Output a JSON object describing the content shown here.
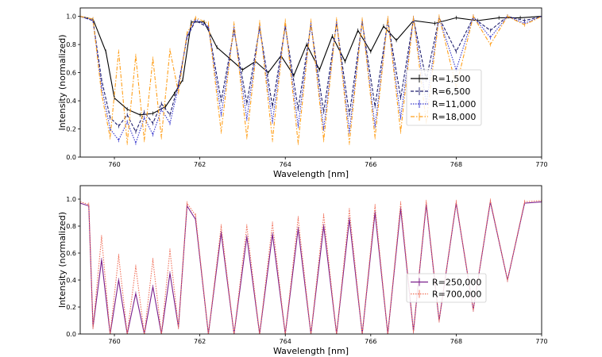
{
  "chart_data": [
    {
      "type": "line",
      "xlabel": "Wavelength [nm]",
      "ylabel": "Intensity (normalized)",
      "xlim": [
        759.2,
        770
      ],
      "ylim": [
        0,
        1.06
      ],
      "xticks": [
        "760",
        "762",
        "764",
        "766",
        "768",
        "770"
      ],
      "yticks": [
        "0.0",
        "0.2",
        "0.4",
        "0.6",
        "0.8",
        "1.0"
      ],
      "legend_position": "center-right",
      "series": [
        {
          "name": "R=1,500",
          "color": "#000000",
          "style": "solid",
          "marker": "errorbar",
          "x": [
            759.2,
            759.5,
            759.8,
            760.0,
            760.3,
            760.6,
            760.9,
            761.2,
            761.4,
            761.6,
            761.8,
            762.1,
            762.4,
            762.7,
            763.0,
            763.3,
            763.6,
            763.9,
            764.2,
            764.5,
            764.8,
            765.1,
            765.4,
            765.7,
            766.0,
            766.3,
            766.6,
            767.0,
            767.5,
            768.0,
            768.5,
            769.0,
            769.5,
            770.0
          ],
          "y": [
            1.0,
            0.98,
            0.75,
            0.42,
            0.34,
            0.3,
            0.31,
            0.36,
            0.45,
            0.55,
            0.96,
            0.96,
            0.78,
            0.7,
            0.62,
            0.68,
            0.6,
            0.72,
            0.58,
            0.8,
            0.62,
            0.86,
            0.68,
            0.9,
            0.75,
            0.93,
            0.83,
            0.97,
            0.95,
            0.99,
            0.97,
            0.99,
            0.99,
            1.0
          ]
        },
        {
          "name": "R=6,500",
          "color": "#1f1f6e",
          "style": "dashed",
          "marker": "errorbar",
          "x": [
            759.2,
            759.5,
            759.7,
            759.9,
            760.1,
            760.3,
            760.5,
            760.7,
            760.9,
            761.1,
            761.3,
            761.5,
            761.7,
            761.9,
            762.2,
            762.5,
            762.8,
            763.1,
            763.4,
            763.7,
            764.0,
            764.3,
            764.6,
            764.9,
            765.2,
            765.5,
            765.8,
            766.1,
            766.4,
            766.7,
            767.0,
            767.3,
            767.6,
            768.0,
            768.4,
            768.8,
            769.2,
            769.6,
            770.0
          ],
          "y": [
            1.0,
            0.97,
            0.55,
            0.28,
            0.22,
            0.3,
            0.18,
            0.32,
            0.24,
            0.38,
            0.3,
            0.52,
            0.85,
            0.97,
            0.92,
            0.4,
            0.9,
            0.38,
            0.92,
            0.36,
            0.93,
            0.34,
            0.94,
            0.32,
            0.95,
            0.3,
            0.96,
            0.36,
            0.97,
            0.42,
            0.98,
            0.55,
            0.99,
            0.75,
            0.99,
            0.9,
            1.0,
            0.97,
            1.0
          ]
        },
        {
          "name": "R=11,000",
          "color": "#3333cc",
          "style": "dotted",
          "marker": "errorbar",
          "x": [
            759.2,
            759.5,
            759.7,
            759.9,
            760.1,
            760.3,
            760.5,
            760.7,
            760.9,
            761.1,
            761.3,
            761.5,
            761.7,
            761.9,
            762.2,
            762.5,
            762.8,
            763.1,
            763.4,
            763.7,
            764.0,
            764.3,
            764.6,
            764.9,
            765.2,
            765.5,
            765.8,
            766.1,
            766.4,
            766.7,
            767.0,
            767.3,
            767.6,
            768.0,
            768.4,
            768.8,
            769.2,
            769.6,
            770.0
          ],
          "y": [
            1.0,
            0.97,
            0.5,
            0.2,
            0.12,
            0.25,
            0.1,
            0.28,
            0.16,
            0.34,
            0.24,
            0.5,
            0.86,
            0.98,
            0.93,
            0.3,
            0.92,
            0.27,
            0.93,
            0.25,
            0.94,
            0.22,
            0.95,
            0.2,
            0.96,
            0.18,
            0.97,
            0.22,
            0.98,
            0.28,
            0.99,
            0.38,
            0.99,
            0.62,
            1.0,
            0.85,
            1.0,
            0.95,
            1.0
          ]
        },
        {
          "name": "R=18,000",
          "color": "#ff9f1a",
          "style": "dashdot",
          "marker": "errorbar",
          "x": [
            759.2,
            759.5,
            759.7,
            759.9,
            760.1,
            760.3,
            760.5,
            760.7,
            760.9,
            761.1,
            761.3,
            761.5,
            761.7,
            761.9,
            762.2,
            762.5,
            762.8,
            763.1,
            763.4,
            763.7,
            764.0,
            764.3,
            764.6,
            764.9,
            765.2,
            765.5,
            765.8,
            766.1,
            766.4,
            766.7,
            767.0,
            767.3,
            767.6,
            768.0,
            768.4,
            768.8,
            769.2,
            769.6,
            770.0
          ],
          "y": [
            1.0,
            0.98,
            0.45,
            0.14,
            0.75,
            0.1,
            0.72,
            0.12,
            0.7,
            0.14,
            0.76,
            0.46,
            0.88,
            0.99,
            0.95,
            0.18,
            0.95,
            0.14,
            0.96,
            0.12,
            0.97,
            0.1,
            0.97,
            0.12,
            0.98,
            0.1,
            0.98,
            0.14,
            0.99,
            0.18,
            0.99,
            0.25,
            1.0,
            0.5,
            1.0,
            0.8,
            1.0,
            0.94,
            1.0
          ]
        }
      ]
    },
    {
      "type": "line",
      "xlabel": "Wavelength [nm]",
      "ylabel": "Intensity (normalized)",
      "xlim": [
        759.2,
        770
      ],
      "ylim": [
        0,
        1.1
      ],
      "xticks": [
        "760",
        "762",
        "764",
        "766",
        "768",
        "770"
      ],
      "yticks": [
        "0.0",
        "0.2",
        "0.4",
        "0.6",
        "0.8",
        "1.0"
      ],
      "legend_position": "center-right",
      "series": [
        {
          "name": "R=250,000",
          "color": "#7a1f8c",
          "style": "solid",
          "marker": "errorbar",
          "x": [
            759.2,
            759.4,
            759.5,
            759.7,
            759.9,
            760.1,
            760.3,
            760.5,
            760.7,
            760.9,
            761.1,
            761.3,
            761.5,
            761.7,
            761.9,
            762.2,
            762.5,
            762.8,
            763.1,
            763.4,
            763.7,
            764.0,
            764.3,
            764.6,
            764.9,
            765.2,
            765.5,
            765.8,
            766.1,
            766.4,
            766.7,
            767.0,
            767.3,
            767.6,
            768.0,
            768.4,
            768.8,
            769.2,
            769.6,
            770.0
          ],
          "y": [
            0.97,
            0.95,
            0.05,
            0.55,
            0.0,
            0.4,
            0.0,
            0.3,
            0.0,
            0.35,
            0.0,
            0.45,
            0.05,
            0.95,
            0.85,
            0.0,
            0.75,
            0.0,
            0.72,
            0.0,
            0.74,
            0.0,
            0.78,
            0.0,
            0.8,
            0.0,
            0.85,
            0.0,
            0.9,
            0.0,
            0.93,
            0.02,
            0.96,
            0.1,
            0.97,
            0.18,
            0.98,
            0.4,
            0.97,
            0.98
          ]
        },
        {
          "name": "R=700,000",
          "color": "#f0705a",
          "style": "dotted",
          "marker": "errorbar",
          "x": [
            759.2,
            759.4,
            759.5,
            759.7,
            759.9,
            760.1,
            760.3,
            760.5,
            760.7,
            760.9,
            761.1,
            761.3,
            761.5,
            761.7,
            761.9,
            762.2,
            762.5,
            762.8,
            763.1,
            763.4,
            763.7,
            764.0,
            764.3,
            764.6,
            764.9,
            765.2,
            765.5,
            765.8,
            766.1,
            766.4,
            766.7,
            767.0,
            767.3,
            767.6,
            768.0,
            768.4,
            768.8,
            769.2,
            769.6,
            770.0
          ],
          "y": [
            0.98,
            0.96,
            0.05,
            0.72,
            0.0,
            0.58,
            0.0,
            0.5,
            0.0,
            0.55,
            0.0,
            0.62,
            0.05,
            0.97,
            0.88,
            0.0,
            0.8,
            0.0,
            0.8,
            0.0,
            0.82,
            0.0,
            0.86,
            0.0,
            0.88,
            0.0,
            0.92,
            0.0,
            0.95,
            0.0,
            0.97,
            0.02,
            0.98,
            0.1,
            0.98,
            0.18,
            0.99,
            0.4,
            0.98,
            0.99
          ]
        }
      ]
    }
  ]
}
